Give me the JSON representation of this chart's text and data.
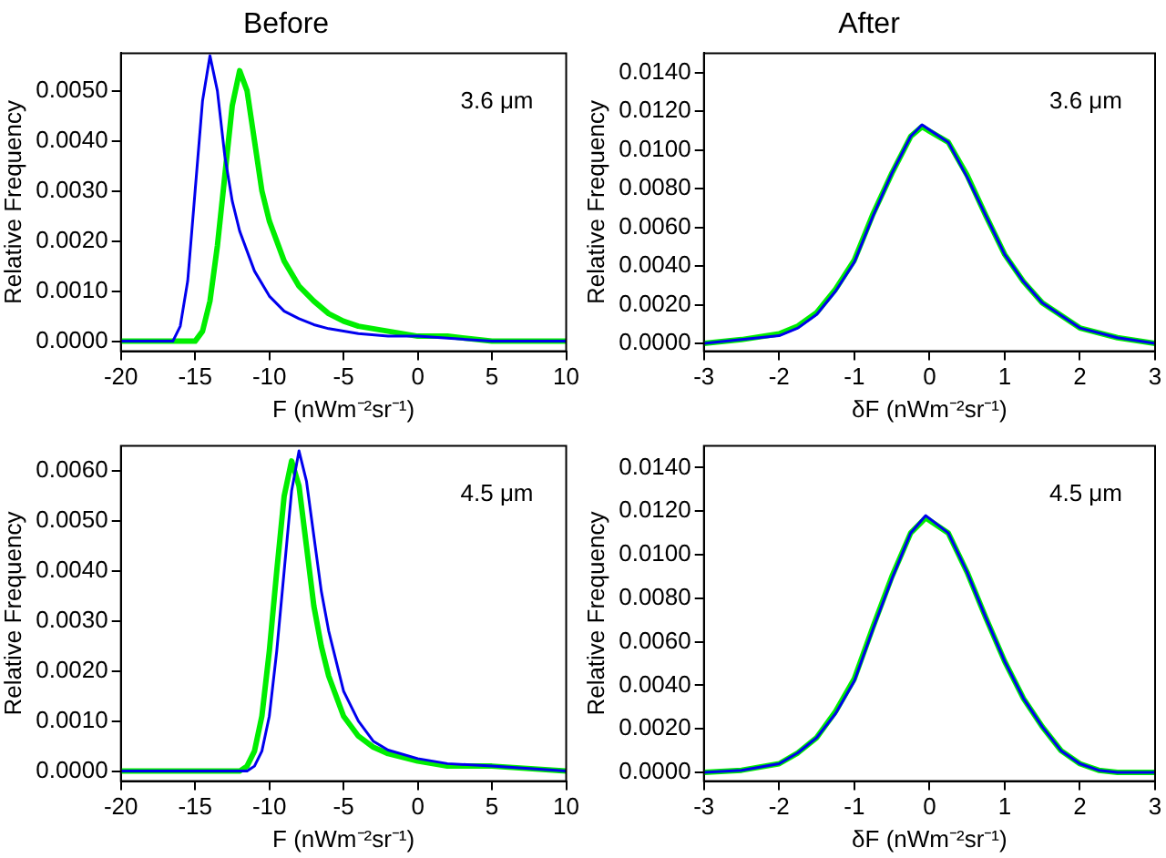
{
  "chart_data": [
    {
      "type": "line",
      "title": "Before",
      "xlabel": "F (nWm⁻²sr⁻¹)",
      "ylabel": "Relative Frequency",
      "annotations": [
        "3.6 μm"
      ],
      "xlim": [
        -20,
        10
      ],
      "xticks": [
        -20,
        -15,
        -10,
        -5,
        0,
        5,
        10
      ],
      "ylim": [
        -0.0002,
        0.00575
      ],
      "yticks": [
        {
          "value": 0,
          "label": "0.0000"
        },
        {
          "value": 0.001,
          "label": "0.0010"
        },
        {
          "value": 0.002,
          "label": "0.0020"
        },
        {
          "value": 0.003,
          "label": "0.0030"
        },
        {
          "value": 0.004,
          "label": "0.0040"
        },
        {
          "value": 0.005,
          "label": "0.0050"
        }
      ],
      "grid": false,
      "legend": false,
      "marker": "none",
      "line_style": "solid",
      "series": [
        {
          "color": "#00ee00",
          "x": [
            -20,
            -15.5,
            -15,
            -14.5,
            -14,
            -13.5,
            -13,
            -12.5,
            -12,
            -11.5,
            -11,
            -10.5,
            -10,
            -9,
            -8,
            -7,
            -6,
            -5,
            -4,
            -2,
            0,
            2,
            5,
            10
          ],
          "values": [
            0,
            0,
            0,
            0.0002,
            0.0008,
            0.0019,
            0.0033,
            0.0047,
            0.0054,
            0.005,
            0.004,
            0.003,
            0.0024,
            0.0016,
            0.0011,
            0.0008,
            0.00055,
            0.0004,
            0.0003,
            0.0002,
            0.0001,
            0.0001,
            0,
            0
          ]
        },
        {
          "color": "#0000ee",
          "x": [
            -20,
            -17,
            -16.5,
            -16,
            -15.5,
            -15,
            -14.5,
            -14,
            -13.5,
            -13,
            -12.5,
            -12,
            -11,
            -10,
            -9,
            -8,
            -7,
            -6,
            -5,
            -4,
            -2,
            0,
            5,
            10
          ],
          "values": [
            0,
            0,
            0,
            0.0003,
            0.0012,
            0.003,
            0.0048,
            0.0057,
            0.005,
            0.0037,
            0.0028,
            0.0022,
            0.0014,
            0.0009,
            0.0006,
            0.00045,
            0.00033,
            0.00025,
            0.0002,
            0.00015,
            0.0001,
            0.0001,
            0,
            0
          ]
        }
      ]
    },
    {
      "type": "line",
      "title": "After",
      "xlabel": "δF (nWm⁻²sr⁻¹)",
      "ylabel": "Relative Frequency",
      "annotations": [
        "3.6 μm"
      ],
      "xlim": [
        -3,
        3
      ],
      "xticks": [
        -3,
        -2,
        -1,
        0,
        1,
        2,
        3
      ],
      "ylim": [
        -0.0004,
        0.015
      ],
      "yticks": [
        {
          "value": 0,
          "label": "0.0000"
        },
        {
          "value": 0.002,
          "label": "0.0020"
        },
        {
          "value": 0.004,
          "label": "0.0040"
        },
        {
          "value": 0.006,
          "label": "0.0060"
        },
        {
          "value": 0.008,
          "label": "0.0080"
        },
        {
          "value": 0.01,
          "label": "0.0100"
        },
        {
          "value": 0.012,
          "label": "0.0120"
        },
        {
          "value": 0.014,
          "label": "0.0140"
        }
      ],
      "grid": false,
      "legend": false,
      "marker": "none",
      "line_style": "solid",
      "series": [
        {
          "color": "#00ee00",
          "x": [
            -3,
            -2.5,
            -2,
            -1.75,
            -1.5,
            -1.25,
            -1,
            -0.75,
            -0.5,
            -0.25,
            -0.1,
            0.25,
            0.5,
            0.75,
            1,
            1.25,
            1.5,
            2,
            2.5,
            3
          ],
          "values": [
            0,
            0.0002,
            0.0005,
            0.0009,
            0.0016,
            0.0028,
            0.0043,
            0.0067,
            0.0088,
            0.0107,
            0.0112,
            0.0104,
            0.0087,
            0.0066,
            0.0046,
            0.0032,
            0.0021,
            0.0008,
            0.0003,
            0
          ]
        },
        {
          "color": "#0000ee",
          "x": [
            -3,
            -2.5,
            -2,
            -1.75,
            -1.5,
            -1.25,
            -1,
            -0.75,
            -0.5,
            -0.25,
            -0.1,
            0.25,
            0.5,
            0.75,
            1,
            1.25,
            1.5,
            2,
            2.5,
            3
          ],
          "values": [
            0,
            0.0002,
            0.0004,
            0.0008,
            0.0015,
            0.0027,
            0.0042,
            0.0066,
            0.0088,
            0.0107,
            0.0113,
            0.0104,
            0.0086,
            0.0066,
            0.0046,
            0.0032,
            0.0021,
            0.0008,
            0.0003,
            0
          ]
        }
      ]
    },
    {
      "type": "line",
      "xlabel": "F (nWm⁻²sr⁻¹)",
      "ylabel": "Relative Frequency",
      "annotations": [
        "4.5 μm"
      ],
      "xlim": [
        -20,
        10
      ],
      "xticks": [
        -20,
        -15,
        -10,
        -5,
        0,
        5,
        10
      ],
      "ylim": [
        -0.0002,
        0.0065
      ],
      "yticks": [
        {
          "value": 0,
          "label": "0.0000"
        },
        {
          "value": 0.001,
          "label": "0.0010"
        },
        {
          "value": 0.002,
          "label": "0.0020"
        },
        {
          "value": 0.003,
          "label": "0.0030"
        },
        {
          "value": 0.004,
          "label": "0.0040"
        },
        {
          "value": 0.005,
          "label": "0.0050"
        },
        {
          "value": 0.006,
          "label": "0.0060"
        }
      ],
      "grid": false,
      "legend": false,
      "marker": "none",
      "line_style": "solid",
      "series": [
        {
          "color": "#00ee00",
          "x": [
            -20,
            -12,
            -11.5,
            -11,
            -10.5,
            -10,
            -9.5,
            -9,
            -8.5,
            -8,
            -7.5,
            -7,
            -6.5,
            -6,
            -5,
            -4,
            -3,
            -2,
            0,
            2,
            5,
            10
          ],
          "values": [
            0,
            0,
            0.0001,
            0.0004,
            0.0011,
            0.0024,
            0.004,
            0.0055,
            0.0062,
            0.0057,
            0.0045,
            0.0033,
            0.0025,
            0.0019,
            0.0011,
            0.0007,
            0.00048,
            0.00035,
            0.0002,
            0.0001,
            0.0001,
            0
          ]
        },
        {
          "color": "#0000ee",
          "x": [
            -20,
            -11.5,
            -11,
            -10.5,
            -10,
            -9.5,
            -9,
            -8.5,
            -8,
            -7.5,
            -7,
            -6.5,
            -6,
            -5,
            -4,
            -3,
            -2,
            0,
            2,
            5,
            10
          ],
          "values": [
            0,
            0,
            0.0001,
            0.0004,
            0.0011,
            0.0024,
            0.004,
            0.0056,
            0.0064,
            0.0058,
            0.0047,
            0.0036,
            0.0028,
            0.0016,
            0.001,
            0.0006,
            0.00042,
            0.00025,
            0.00015,
            0.0001,
            0
          ]
        }
      ]
    },
    {
      "type": "line",
      "xlabel": "δF (nWm⁻²sr⁻¹)",
      "ylabel": "Relative Frequency",
      "annotations": [
        "4.5 μm"
      ],
      "xlim": [
        -3,
        3
      ],
      "xticks": [
        -3,
        -2,
        -1,
        0,
        1,
        2,
        3
      ],
      "ylim": [
        -0.0004,
        0.015
      ],
      "yticks": [
        {
          "value": 0,
          "label": "0.0000"
        },
        {
          "value": 0.002,
          "label": "0.0020"
        },
        {
          "value": 0.004,
          "label": "0.0040"
        },
        {
          "value": 0.006,
          "label": "0.0060"
        },
        {
          "value": 0.008,
          "label": "0.0080"
        },
        {
          "value": 0.01,
          "label": "0.0100"
        },
        {
          "value": 0.012,
          "label": "0.0120"
        },
        {
          "value": 0.014,
          "label": "0.0140"
        }
      ],
      "grid": false,
      "legend": false,
      "marker": "none",
      "line_style": "solid",
      "series": [
        {
          "color": "#00ee00",
          "x": [
            -3,
            -2.5,
            -2,
            -1.75,
            -1.5,
            -1.25,
            -1,
            -0.75,
            -0.5,
            -0.25,
            -0.05,
            0.25,
            0.5,
            0.75,
            1,
            1.25,
            1.5,
            1.75,
            2,
            2.25,
            2.5,
            3
          ],
          "values": [
            0,
            0.0001,
            0.0004,
            0.0009,
            0.0016,
            0.0028,
            0.0043,
            0.0067,
            0.009,
            0.011,
            0.0117,
            0.011,
            0.0092,
            0.0071,
            0.0051,
            0.0034,
            0.0021,
            0.001,
            0.0004,
            0.0001,
            0,
            0
          ]
        },
        {
          "color": "#0000ee",
          "x": [
            -3,
            -2.5,
            -2,
            -1.75,
            -1.5,
            -1.25,
            -1,
            -0.75,
            -0.5,
            -0.25,
            -0.05,
            0.25,
            0.5,
            0.75,
            1,
            1.25,
            1.5,
            1.75,
            2,
            2.25,
            2.5,
            3
          ],
          "values": [
            0,
            0.0001,
            0.0004,
            0.0009,
            0.0016,
            0.0027,
            0.0042,
            0.0066,
            0.0089,
            0.011,
            0.0118,
            0.011,
            0.0092,
            0.0071,
            0.0051,
            0.0034,
            0.0021,
            0.001,
            0.0004,
            0.0001,
            0,
            0
          ]
        }
      ]
    }
  ]
}
